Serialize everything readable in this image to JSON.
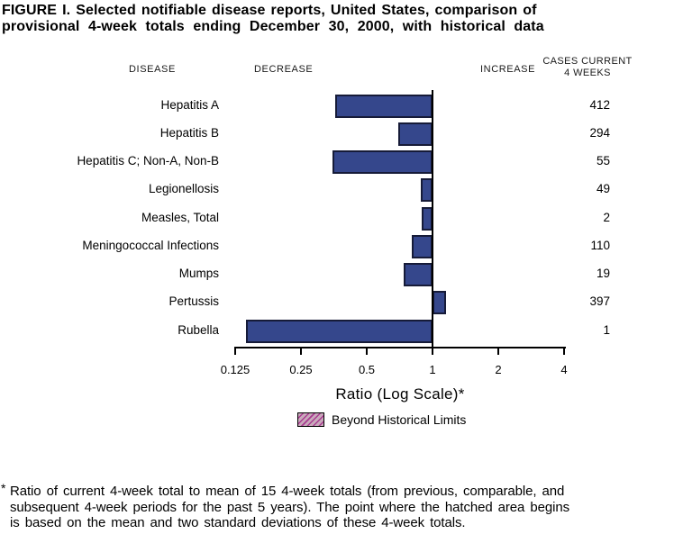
{
  "title": {
    "line1": "FIGURE I.  Selected notifiable disease reports, United States, comparison of",
    "line2": "provisional 4-week totals ending December 30, 2000, with historical data"
  },
  "column_headers": {
    "disease": "DISEASE",
    "decrease": "DECREASE",
    "increase": "INCREASE",
    "cases_line1": "CASES CURRENT",
    "cases_line2": "4 WEEKS"
  },
  "chart_data": {
    "type": "bar",
    "orientation": "horizontal",
    "scale": "log",
    "baseline_value": 1,
    "xlabel": "Ratio (Log Scale)*",
    "xlim": [
      0.125,
      4
    ],
    "tick_values": [
      0.125,
      0.25,
      0.5,
      1,
      2,
      4
    ],
    "tick_labels": [
      "0.125",
      "0.25",
      "0.5",
      "1",
      "2",
      "4"
    ],
    "grid": "off",
    "bar_color": "#35478C",
    "bar_border_color": "#161b38",
    "rows": [
      {
        "disease": "Hepatitis A",
        "ratio": 0.36,
        "cases": "412"
      },
      {
        "disease": "Hepatitis B",
        "ratio": 0.7,
        "cases": "294"
      },
      {
        "disease": "Hepatitis C; Non-A, Non-B",
        "ratio": 0.35,
        "cases": "55"
      },
      {
        "disease": "Legionellosis",
        "ratio": 0.88,
        "cases": "49"
      },
      {
        "disease": "Measles, Total",
        "ratio": 0.89,
        "cases": "2"
      },
      {
        "disease": "Meningococcal Infections",
        "ratio": 0.8,
        "cases": "110"
      },
      {
        "disease": "Mumps",
        "ratio": 0.74,
        "cases": "19"
      },
      {
        "disease": "Pertussis",
        "ratio": 1.15,
        "cases": "397"
      },
      {
        "disease": "Rubella",
        "ratio": 0.14,
        "cases": "1"
      }
    ]
  },
  "legend": {
    "label": "Beyond Historical Limits",
    "swatch_bg": "#c9a9bb",
    "swatch_hatch": "#a83a90"
  },
  "footnote": {
    "marker": "*",
    "line1": "Ratio of current 4-week total to mean of 15 4-week totals (from previous, comparable, and",
    "line2": "subsequent 4-week periods for the past 5 years). The point where the hatched area begins",
    "line3": "is based on the mean and two standard deviations of these 4-week totals."
  }
}
